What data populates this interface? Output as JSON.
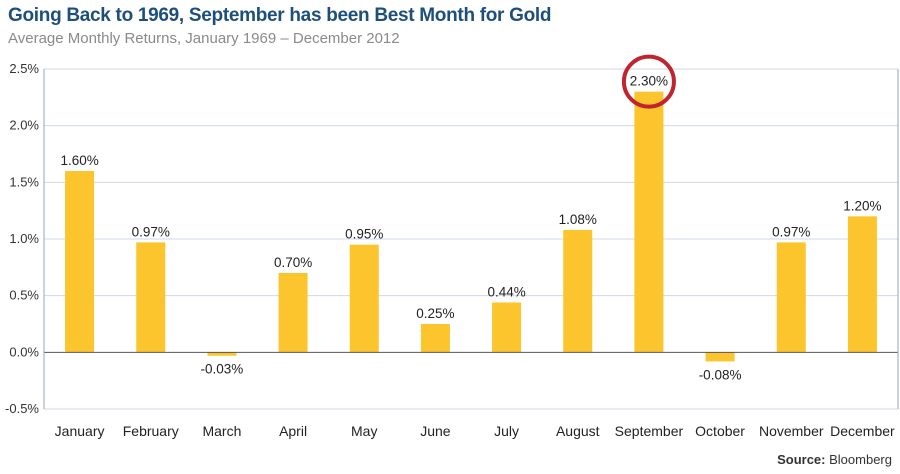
{
  "chart_data": {
    "type": "bar",
    "title": "Going Back to 1969, September has been Best Month for Gold",
    "subtitle": "Average Monthly Returns, January 1969 – December 2012",
    "categories": [
      "January",
      "February",
      "March",
      "April",
      "May",
      "June",
      "July",
      "August",
      "September",
      "October",
      "November",
      "December"
    ],
    "values": [
      1.6,
      0.97,
      -0.03,
      0.7,
      0.95,
      0.25,
      0.44,
      1.08,
      2.3,
      -0.08,
      0.97,
      1.2
    ],
    "value_labels": [
      "1.60%",
      "0.97%",
      "-0.03%",
      "0.70%",
      "0.95%",
      "0.25%",
      "0.44%",
      "1.08%",
      "2.30%",
      "-0.08%",
      "0.97%",
      "1.20%"
    ],
    "ylim": [
      -0.5,
      2.5
    ],
    "yticks": [
      2.5,
      2.0,
      1.5,
      1.0,
      0.5,
      0.0,
      -0.5
    ],
    "ytick_labels": [
      "2.5%",
      "2.0%",
      "1.5%",
      "1.0%",
      "0.5%",
      "0.0%",
      "-0.5%"
    ],
    "xlabel": "",
    "ylabel": "",
    "grid": true,
    "highlight": {
      "category": "September",
      "style": "circle"
    },
    "source_label": "Source:",
    "source_value": "Bloomberg",
    "colors": {
      "bar": "#fcc42d",
      "highlight_circle": "#c0242f",
      "title": "#1d4f7c",
      "grid": "#cfd8e6"
    }
  }
}
